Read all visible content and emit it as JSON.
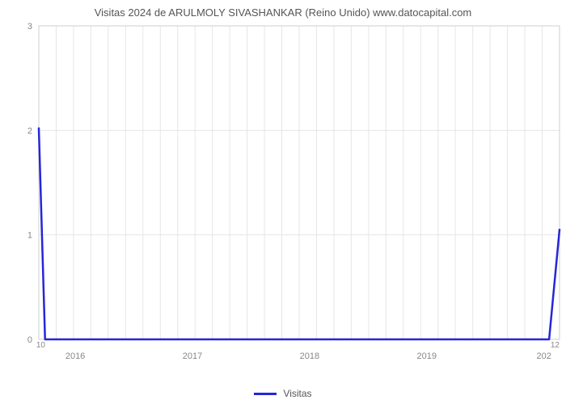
{
  "chart": {
    "type": "line",
    "title": "Visitas 2024 de ARULMOLY SIVASHANKAR (Reino Unido) www.datocapital.com",
    "title_fontsize": 13,
    "title_color": "#555555",
    "background_color": "#ffffff",
    "plot_background": "#ffffff",
    "plot_border_color": "#cfcfcf",
    "grid_color": "#e6e6e6",
    "line_color": "#2626d9",
    "line_width": 2.5,
    "x": {
      "ticks": [
        "2016",
        "2017",
        "2018",
        "2019",
        "202"
      ],
      "tick_positions": [
        0.07,
        0.295,
        0.52,
        0.745,
        0.97
      ],
      "left_small": "10",
      "right_small": "12"
    },
    "y": {
      "ticks": [
        "0",
        "1",
        "2",
        "3"
      ],
      "tick_positions": [
        0,
        1,
        2,
        3
      ],
      "ylim": [
        0,
        3
      ]
    },
    "series": [
      {
        "x_frac": 0.0,
        "y": 2.02
      },
      {
        "x_frac": 0.012,
        "y": 0.0
      },
      {
        "x_frac": 0.98,
        "y": 0.0
      },
      {
        "x_frac": 1.0,
        "y": 1.05
      }
    ],
    "legend": {
      "label": "Visitas",
      "color": "#2626d9"
    }
  }
}
